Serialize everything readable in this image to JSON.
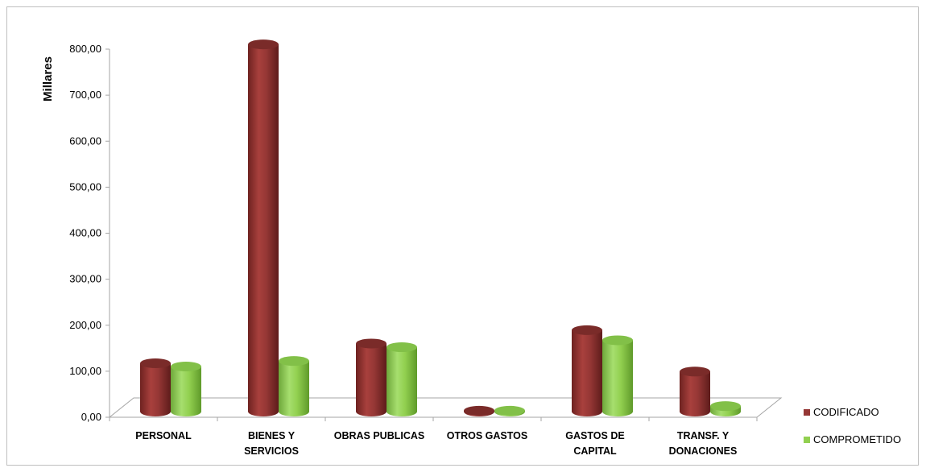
{
  "chart_data": {
    "type": "bar",
    "title": "",
    "ylabel": "Millares",
    "xlabel": "",
    "ylim": [
      0,
      800
    ],
    "yticks": [
      "0,00",
      "100,00",
      "200,00",
      "300,00",
      "400,00",
      "500,00",
      "600,00",
      "700,00",
      "800,00"
    ],
    "categories": [
      [
        "PERSONAL"
      ],
      [
        "BIENES Y",
        "SERVICIOS"
      ],
      [
        "OBRAS PUBLICAS"
      ],
      [
        "OTROS GASTOS"
      ],
      [
        "GASTOS DE",
        "CAPITAL"
      ],
      [
        "TRANSF.  Y",
        "DONACIONES"
      ]
    ],
    "series": [
      {
        "name": "CODIFICADO",
        "color": "#953735",
        "values": [
          105,
          798,
          148,
          2,
          177,
          87
        ]
      },
      {
        "name": "COMPROMETIDO",
        "color": "#92d050",
        "values": [
          98,
          110,
          140,
          2,
          155,
          12
        ]
      }
    ],
    "legend_position": "right",
    "grid": false
  }
}
